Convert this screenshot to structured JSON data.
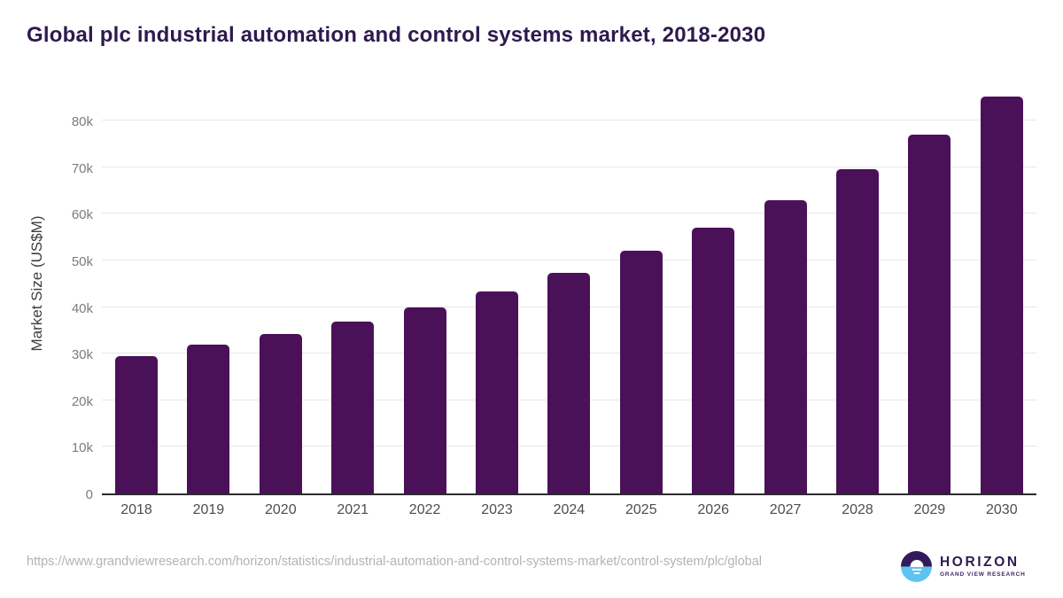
{
  "title": "Global plc industrial automation and control systems market, 2018-2030",
  "chart_data": {
    "type": "bar",
    "title": "Global plc industrial automation and control systems market, 2018-2030",
    "categories": [
      "2018",
      "2019",
      "2020",
      "2021",
      "2022",
      "2023",
      "2024",
      "2025",
      "2026",
      "2027",
      "2028",
      "2029",
      "2030"
    ],
    "values": [
      29500,
      32000,
      34200,
      36900,
      39900,
      43300,
      47300,
      52000,
      57100,
      62900,
      69600,
      77000,
      85200
    ],
    "xlabel": "",
    "ylabel": "Market Size (US$M)",
    "ylim": [
      0,
      86500
    ],
    "yticks": [
      0,
      10000,
      20000,
      30000,
      40000,
      50000,
      60000,
      70000,
      80000
    ],
    "ytick_labels": [
      "0",
      "10k",
      "20k",
      "30k",
      "40k",
      "50k",
      "60k",
      "70k",
      "80k"
    ],
    "grid": true,
    "legend": false,
    "bar_color": "#4a1158"
  },
  "footer": {
    "source_url": "https://www.grandviewresearch.com/horizon/statistics/industrial-automation-and-control-systems-market/control-system/plc/global",
    "logo": {
      "name": "HORIZON",
      "subtitle": "GRAND VIEW RESEARCH"
    }
  },
  "colors": {
    "bar": "#4a1158",
    "title": "#2e1a4f",
    "grid": "#e7e7e7",
    "axis_line": "#2b2b2b",
    "y_tick_label": "#7c7c7c",
    "x_tick_label": "#4d4d4d",
    "url_text": "#b3b3b3",
    "logo_purple": "#33195a",
    "logo_blue": "#5ec3f0"
  }
}
